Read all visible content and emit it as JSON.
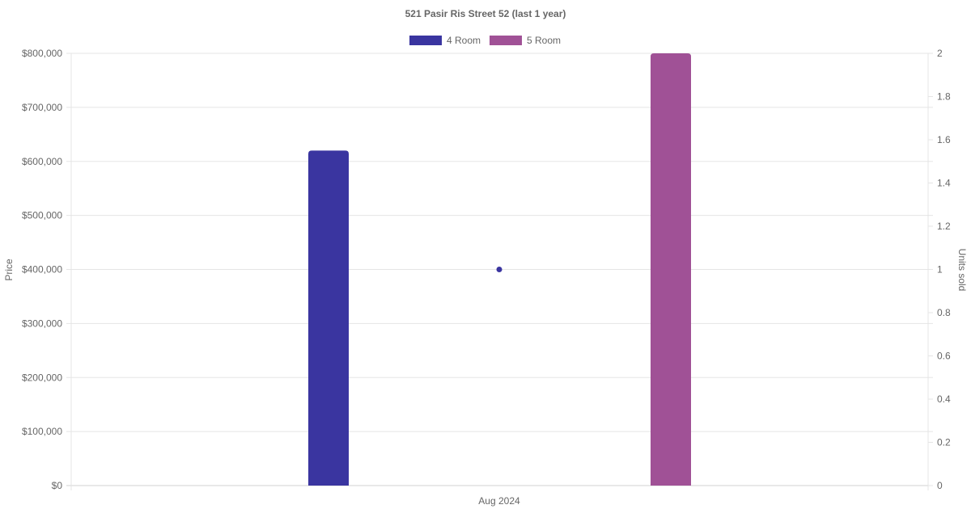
{
  "chart_data": {
    "type": "bar",
    "title": "521 Pasir Ris Street 52 (last 1 year)",
    "categories": [
      "Aug 2024"
    ],
    "series": [
      {
        "name": "4 Room",
        "type": "bar",
        "axis": "left",
        "color": "#3a35a0",
        "values": [
          620000
        ]
      },
      {
        "name": "5 Room",
        "type": "bar",
        "axis": "left",
        "color": "#a05196",
        "values": [
          800000
        ]
      },
      {
        "type": "scatter",
        "axis": "right",
        "color": "#3a35a0",
        "values": [
          1
        ]
      }
    ],
    "ylabel": "Price",
    "ylim": [
      0,
      800000
    ],
    "yticks": [
      "$0",
      "$100,000",
      "$200,000",
      "$300,000",
      "$400,000",
      "$500,000",
      "$600,000",
      "$700,000",
      "$800,000"
    ],
    "y2label": "Units sold",
    "y2lim": [
      0,
      2
    ],
    "y2ticks": [
      "0",
      "0.2",
      "0.4",
      "0.6",
      "0.8",
      "1",
      "1.2",
      "1.4",
      "1.6",
      "1.8",
      "2"
    ],
    "legend_position": "top-center",
    "grid": true
  }
}
